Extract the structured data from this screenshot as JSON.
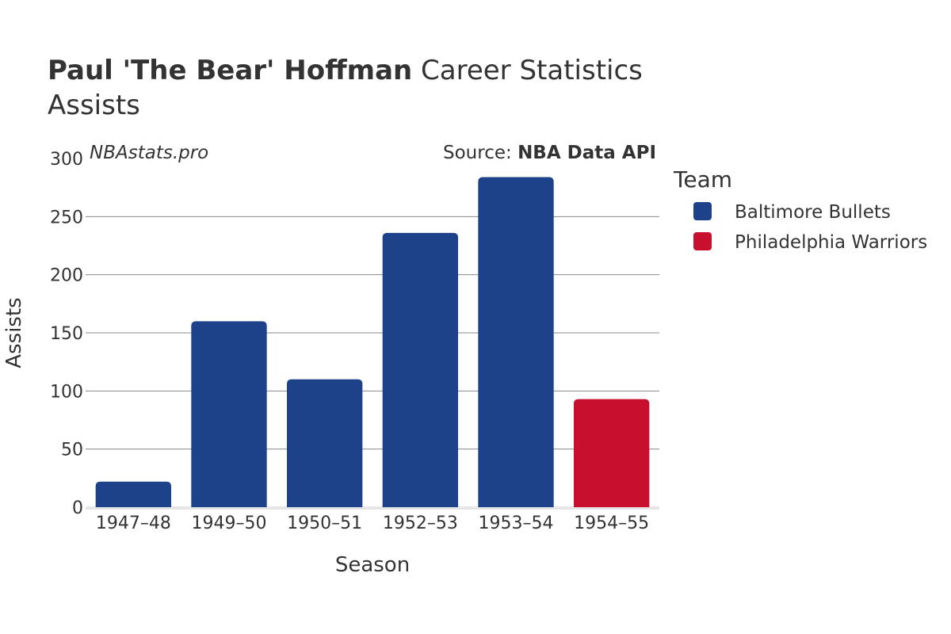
{
  "title": {
    "bold": "Paul 'The Bear' Hoffman",
    "rest": " Career Statistics",
    "subtitle": "Assists"
  },
  "watermark": "NBAstats.pro",
  "source": {
    "prefix": "Source: ",
    "name": "NBA Data API"
  },
  "legend": {
    "title": "Team",
    "items": [
      {
        "label": "Baltimore Bullets",
        "color": "#1d428a"
      },
      {
        "label": "Philadelphia Warriors",
        "color": "#c8102e"
      }
    ]
  },
  "chart_data": {
    "type": "bar",
    "categories": [
      "1947–48",
      "1949–50",
      "1950–51",
      "1952–53",
      "1953–54",
      "1954–55"
    ],
    "values": [
      22,
      160,
      110,
      236,
      284,
      93
    ],
    "teams": [
      "Baltimore Bullets",
      "Baltimore Bullets",
      "Baltimore Bullets",
      "Baltimore Bullets",
      "Baltimore Bullets",
      "Philadelphia Warriors"
    ],
    "xlabel": "Season",
    "ylabel": "Assists",
    "ylim": [
      0,
      300
    ],
    "yticks": [
      0,
      50,
      100,
      150,
      200,
      250,
      300
    ],
    "grid": true,
    "legend_position": "right"
  }
}
